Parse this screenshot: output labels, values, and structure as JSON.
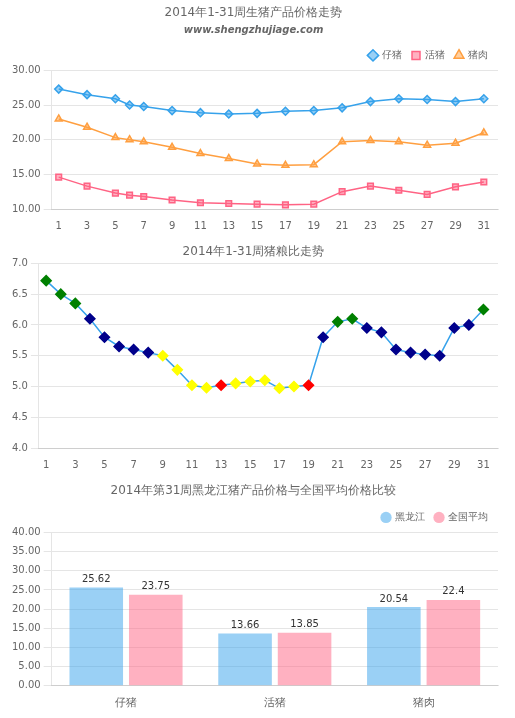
{
  "chart_data": [
    {
      "type": "line",
      "title": "2014年1-31周生猪产品价格走势",
      "annotations": [
        "www.shengzhujiage.com"
      ],
      "x": [
        1,
        3,
        5,
        6,
        7,
        9,
        11,
        13,
        15,
        17,
        19,
        21,
        23,
        25,
        27,
        29,
        31
      ],
      "series": [
        {
          "name": "仔猪",
          "marker": "diamond",
          "values": [
            27.3,
            26.5,
            25.9,
            25.0,
            24.8,
            24.2,
            23.9,
            23.7,
            23.8,
            24.1,
            24.2,
            24.6,
            25.5,
            25.9,
            25.8,
            25.5,
            25.9
          ]
        },
        {
          "name": "活猪",
          "marker": "square",
          "values": [
            14.6,
            13.3,
            12.3,
            12.0,
            11.8,
            11.3,
            10.9,
            10.8,
            10.7,
            10.6,
            10.7,
            12.5,
            13.3,
            12.7,
            12.1,
            13.2,
            13.9
          ]
        },
        {
          "name": "猪肉",
          "marker": "triangle",
          "values": [
            23.0,
            21.8,
            20.3,
            20.0,
            19.7,
            18.9,
            18.0,
            17.3,
            16.5,
            16.3,
            16.4,
            19.7,
            19.9,
            19.7,
            19.2,
            19.5,
            21.0
          ]
        }
      ],
      "xlim": [
        0.5,
        32
      ],
      "xticks": [
        1,
        3,
        5,
        7,
        9,
        11,
        13,
        15,
        17,
        19,
        21,
        23,
        25,
        27,
        29,
        31
      ],
      "ylim": [
        10,
        30
      ],
      "yticks": [
        {
          "value": 10,
          "label": "10.00"
        },
        {
          "value": 15,
          "label": "15.00"
        },
        {
          "value": 20,
          "label": "20.00"
        },
        {
          "value": 25,
          "label": "25.00"
        },
        {
          "value": 30,
          "label": "30.00"
        }
      ],
      "grid": "y",
      "legend": "upper right"
    },
    {
      "type": "line",
      "title": "2014年1-31周猪粮比走势",
      "x": [
        1,
        2,
        3,
        4,
        5,
        6,
        7,
        8,
        9,
        10,
        11,
        12,
        13,
        14,
        15,
        16,
        17,
        18,
        19,
        20,
        21,
        22,
        23,
        24,
        25,
        26,
        27,
        28,
        29,
        30,
        31
      ],
      "values": [
        6.72,
        6.5,
        6.35,
        6.1,
        5.8,
        5.65,
        5.6,
        5.55,
        5.5,
        5.27,
        5.02,
        4.98,
        5.02,
        5.05,
        5.08,
        5.1,
        4.97,
        5.0,
        5.02,
        5.8,
        6.05,
        6.1,
        5.95,
        5.88,
        5.6,
        5.55,
        5.52,
        5.5,
        5.95,
        6.0,
        6.25
      ],
      "colors": [
        "#008000",
        "#008000",
        "#008000",
        "#00008B",
        "#00008B",
        "#00008B",
        "#00008B",
        "#00008B",
        "#FFFF00",
        "#FFFF00",
        "#FFFF00",
        "#FFFF00",
        "#FF0000",
        "#FFFF00",
        "#FFFF00",
        "#FFFF00",
        "#FFFF00",
        "#FFFF00",
        "#FF0000",
        "#00008B",
        "#008000",
        "#008000",
        "#00008B",
        "#00008B",
        "#00008B",
        "#00008B",
        "#00008B",
        "#00008B",
        "#00008B",
        "#00008B",
        "#008000"
      ],
      "marker": "diamond",
      "xlim": [
        0.5,
        32
      ],
      "xticks": [
        1,
        3,
        5,
        7,
        9,
        11,
        13,
        15,
        17,
        19,
        21,
        23,
        25,
        27,
        29,
        31
      ],
      "ylim": [
        4,
        7
      ],
      "yticks": [
        {
          "value": 4,
          "label": "4.0"
        },
        4.5,
        {
          "value": 5,
          "label": "5.0"
        },
        5.5,
        {
          "value": 6,
          "label": "6.0"
        },
        6.5,
        {
          "value": 7,
          "label": "7.0"
        }
      ],
      "grid": "y"
    },
    {
      "type": "bar",
      "title": "2014年第31周黑龙江猪产品价格与全国平均价格比较",
      "categories": [
        "仔猪",
        "活猪",
        "猪肉"
      ],
      "series": [
        {
          "name": "黑龙江",
          "values": [
            25.62,
            13.66,
            20.54
          ]
        },
        {
          "name": "全国平均",
          "values": [
            23.75,
            13.85,
            22.4
          ]
        }
      ],
      "ylim": [
        0,
        40
      ],
      "yticks": [
        {
          "value": 0,
          "label": "0.00"
        },
        {
          "value": 5,
          "label": "5.00"
        },
        {
          "value": 10,
          "label": "10.00"
        },
        {
          "value": 15,
          "label": "15.00"
        },
        {
          "value": 20,
          "label": "20.00"
        },
        {
          "value": 25,
          "label": "25.00"
        },
        {
          "value": 30,
          "label": "30.00"
        },
        {
          "value": 35,
          "label": "35.00"
        },
        {
          "value": 40,
          "label": "40.00"
        }
      ],
      "grid": "y",
      "legend": "upper right",
      "data_labels": true
    }
  ]
}
